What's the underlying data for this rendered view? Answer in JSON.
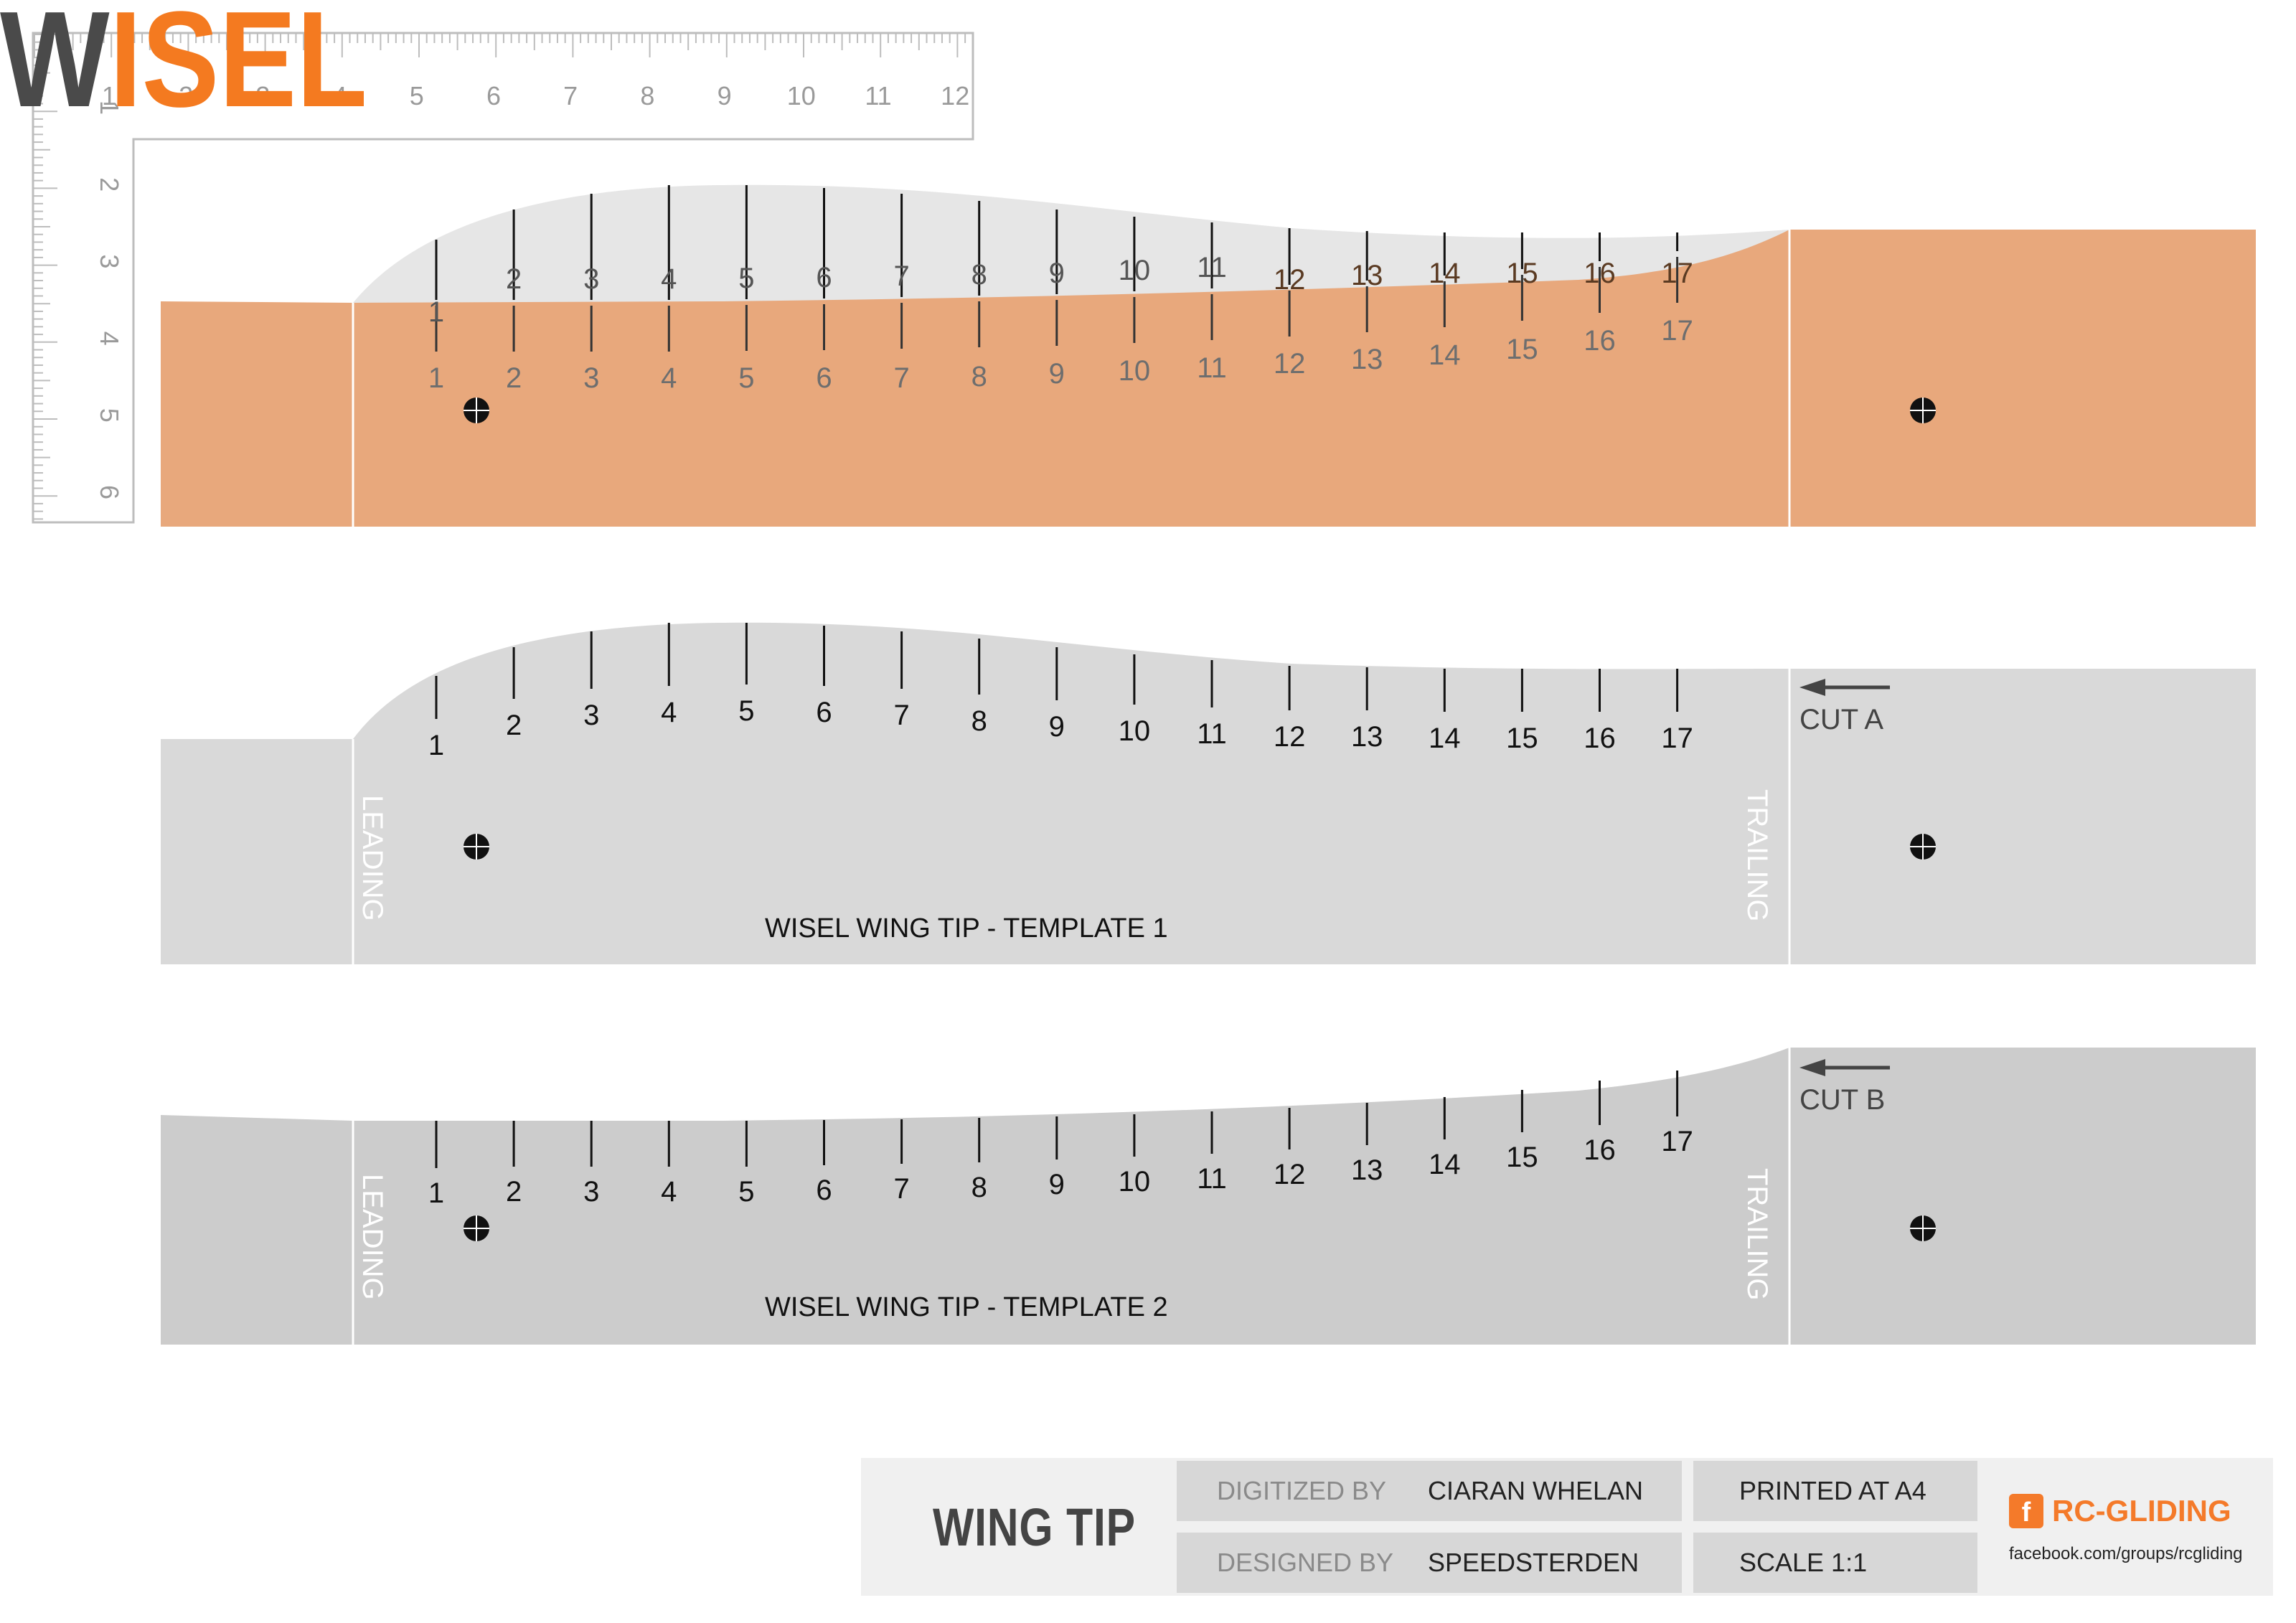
{
  "brand": {
    "logo_text": "WISEL",
    "logo_dark_part": "W",
    "logo_orange_part": "ISEL",
    "dark_color": "#4a4a4a",
    "orange_color": "#f47a20"
  },
  "colors": {
    "top_template_fill": "#e8a87c",
    "template1_fill": "#d9d9d9",
    "template2_fill": "#cccccc",
    "ghost_profile_fill": "#e6e6e6",
    "tick_color": "#111111"
  },
  "ruler": {
    "horizontal_labels": [
      "1",
      "2",
      "3",
      "4",
      "5",
      "6",
      "7",
      "8",
      "9",
      "10",
      "11",
      "12"
    ],
    "vertical_labels": [
      "1",
      "2",
      "3",
      "4",
      "5",
      "6"
    ]
  },
  "top_template": {
    "upper_station_labels": [
      "1",
      "2",
      "3",
      "4",
      "5",
      "6",
      "7",
      "8",
      "9",
      "10",
      "11",
      "12",
      "13",
      "14",
      "15",
      "16",
      "17"
    ],
    "lower_station_labels": [
      "1",
      "2",
      "3",
      "4",
      "5",
      "6",
      "7",
      "8",
      "9",
      "10",
      "11",
      "12",
      "13",
      "14",
      "15",
      "16",
      "17"
    ]
  },
  "template1": {
    "title": "WISEL WING TIP - TEMPLATE 1",
    "leading_label": "LEADING",
    "trailing_label": "TRAILING",
    "cut_label": "CUT A",
    "station_labels": [
      "1",
      "2",
      "3",
      "4",
      "5",
      "6",
      "7",
      "8",
      "9",
      "10",
      "11",
      "12",
      "13",
      "14",
      "15",
      "16",
      "17"
    ]
  },
  "template2": {
    "title": "WISEL WING TIP - TEMPLATE 2",
    "leading_label": "LEADING",
    "trailing_label": "TRAILING",
    "cut_label": "CUT B",
    "station_labels": [
      "1",
      "2",
      "3",
      "4",
      "5",
      "6",
      "7",
      "8",
      "9",
      "10",
      "11",
      "12",
      "13",
      "14",
      "15",
      "16",
      "17"
    ]
  },
  "title_block": {
    "part_name": "WING TIP",
    "digitized_label": "DIGITIZED BY",
    "digitized_value": "CIARAN WHELAN",
    "designed_label": "DESIGNED BY",
    "designed_value": "SPEEDSTERDEN",
    "printed": "PRINTED AT A4",
    "scale": "SCALE 1:1",
    "fb_glyph": "f",
    "rc_brand": "RC-GLIDING",
    "rc_url": "facebook.com/groups/rcgliding",
    "rc_color": "#f47a2a"
  }
}
